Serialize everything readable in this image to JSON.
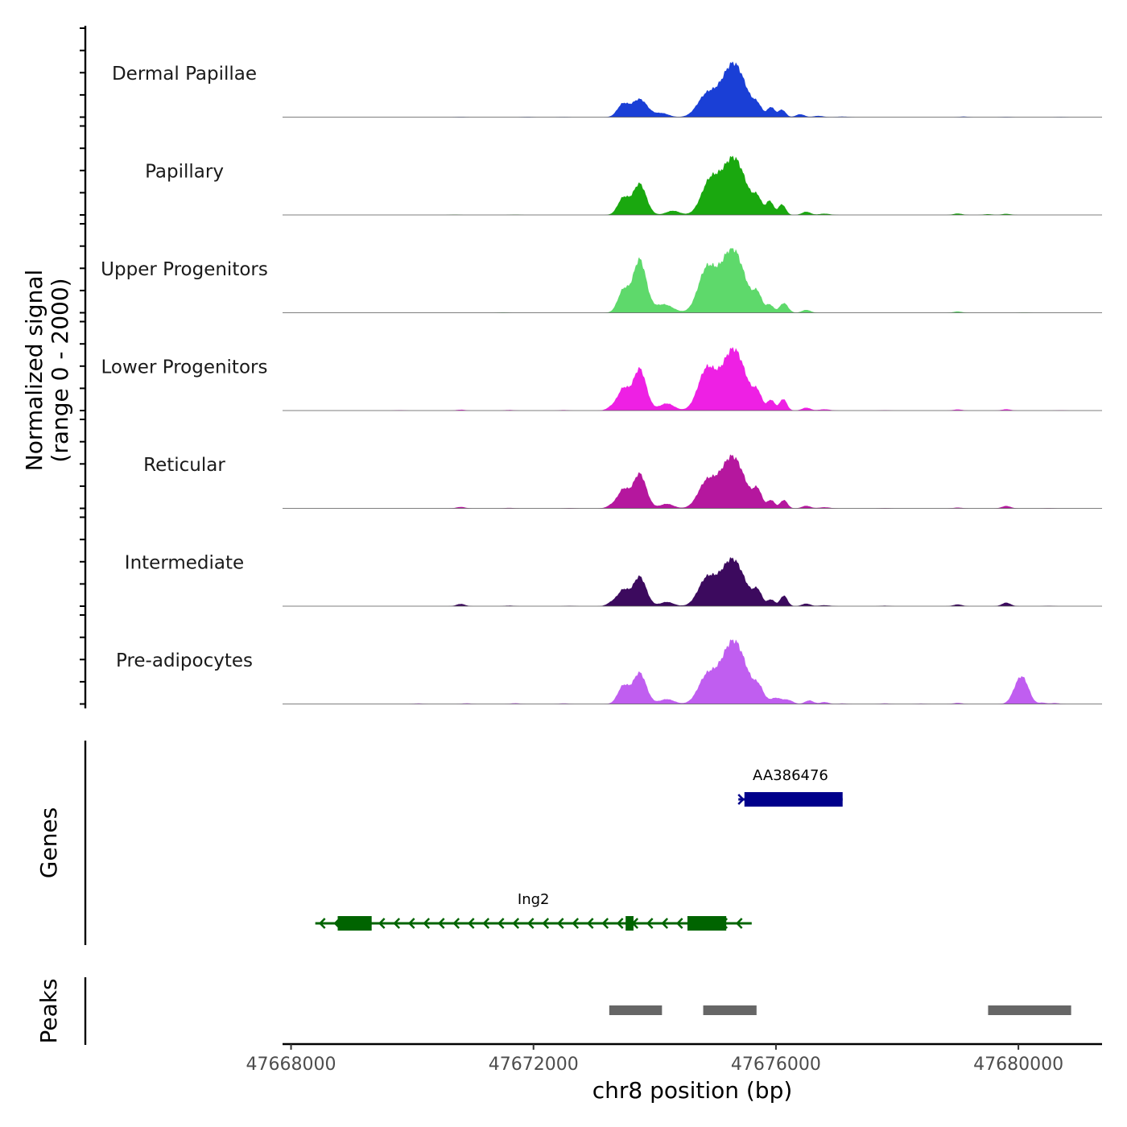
{
  "chart_data": {
    "type": "area",
    "title": "",
    "xlabel": "chr8 position (bp)",
    "ylabel_line1": "Normalized signal",
    "ylabel_line2": "(range 0 - 2000)",
    "xlim": [
      47667860,
      47681380
    ],
    "ylim": [
      0,
      2000
    ],
    "x_ticks": [
      47668000,
      47672000,
      47676000,
      47680000
    ],
    "x_tick_labels": [
      "47668000",
      "47672000",
      "47676000",
      "47680000"
    ],
    "tracks": [
      {
        "name": "Dermal Papillae",
        "color": "#1a3fd6",
        "baseline": [
          [
            47670800,
            10
          ],
          [
            47671900,
            12
          ],
          [
            47672500,
            8
          ],
          [
            47679100,
            18
          ],
          [
            47679800,
            12
          ],
          [
            47680700,
            8
          ]
        ],
        "peaks": [
          [
            47673470,
            380,
            90
          ],
          [
            47673750,
            560,
            130
          ],
          [
            47674120,
            120,
            110
          ],
          [
            47674850,
            640,
            150
          ],
          [
            47675300,
            1680,
            200
          ],
          [
            47675700,
            260,
            70
          ],
          [
            47675920,
            300,
            60
          ],
          [
            47676100,
            230,
            60
          ],
          [
            47676400,
            90,
            70
          ],
          [
            47676700,
            40,
            80
          ],
          [
            47677100,
            18,
            90
          ]
        ]
      },
      {
        "name": "Papillary",
        "color": "#1aa80f",
        "baseline": [
          [
            47670700,
            10
          ],
          [
            47671700,
            10
          ],
          [
            47679000,
            45
          ],
          [
            47679500,
            25
          ],
          [
            47679800,
            35
          ]
        ],
        "peaks": [
          [
            47673480,
            520,
            90
          ],
          [
            47673750,
            970,
            110
          ],
          [
            47674300,
            130,
            110
          ],
          [
            47674900,
            920,
            140
          ],
          [
            47675300,
            1780,
            200
          ],
          [
            47675700,
            400,
            70
          ],
          [
            47675900,
            420,
            60
          ],
          [
            47676100,
            330,
            60
          ],
          [
            47676500,
            100,
            70
          ],
          [
            47676800,
            40,
            90
          ]
        ]
      },
      {
        "name": "Upper Progenitors",
        "color": "#5ed96b",
        "baseline": [
          [
            47671500,
            12
          ],
          [
            47679000,
            40
          ],
          [
            47680100,
            10
          ]
        ],
        "peaks": [
          [
            47673480,
            680,
            90
          ],
          [
            47673750,
            1650,
            110
          ],
          [
            47674150,
            260,
            150
          ],
          [
            47674850,
            1250,
            140
          ],
          [
            47675280,
            2000,
            200
          ],
          [
            47675700,
            480,
            70
          ],
          [
            47675900,
            240,
            60
          ],
          [
            47676130,
            300,
            70
          ],
          [
            47676500,
            90,
            70
          ]
        ]
      },
      {
        "name": "Lower Progenitors",
        "color": "#ee20e4",
        "baseline": [
          [
            47669800,
            12
          ],
          [
            47670800,
            28
          ],
          [
            47671600,
            18
          ],
          [
            47672500,
            16
          ],
          [
            47677800,
            12
          ],
          [
            47679000,
            35
          ],
          [
            47679800,
            42
          ],
          [
            47680700,
            10
          ]
        ],
        "peaks": [
          [
            47673300,
            120,
            80
          ],
          [
            47673480,
            650,
            90
          ],
          [
            47673750,
            1300,
            110
          ],
          [
            47674200,
            220,
            120
          ],
          [
            47674850,
            1200,
            140
          ],
          [
            47675300,
            1920,
            200
          ],
          [
            47675700,
            420,
            70
          ],
          [
            47675920,
            320,
            60
          ],
          [
            47676120,
            360,
            60
          ],
          [
            47676500,
            90,
            70
          ],
          [
            47676800,
            40,
            90
          ]
        ]
      },
      {
        "name": "Reticular",
        "color": "#b5179e",
        "baseline": [
          [
            47670800,
            45
          ],
          [
            47671600,
            16
          ],
          [
            47672600,
            12
          ],
          [
            47677800,
            12
          ],
          [
            47679000,
            25
          ],
          [
            47679800,
            75
          ],
          [
            47680500,
            10
          ]
        ],
        "peaks": [
          [
            47673300,
            100,
            80
          ],
          [
            47673480,
            560,
            90
          ],
          [
            47673750,
            1080,
            110
          ],
          [
            47674200,
            140,
            110
          ],
          [
            47674850,
            750,
            140
          ],
          [
            47675280,
            1620,
            200
          ],
          [
            47675700,
            480,
            70
          ],
          [
            47675920,
            250,
            60
          ],
          [
            47676130,
            260,
            60
          ],
          [
            47676500,
            80,
            70
          ],
          [
            47676800,
            35,
            90
          ]
        ]
      },
      {
        "name": "Intermediate",
        "color": "#3c0a5e",
        "baseline": [
          [
            47670800,
            70
          ],
          [
            47671600,
            18
          ],
          [
            47672600,
            12
          ],
          [
            47677800,
            15
          ],
          [
            47679000,
            55
          ],
          [
            47679800,
            110
          ],
          [
            47680500,
            12
          ]
        ],
        "peaks": [
          [
            47673300,
            120,
            80
          ],
          [
            47673480,
            480,
            90
          ],
          [
            47673750,
            920,
            110
          ],
          [
            47674200,
            130,
            110
          ],
          [
            47674850,
            780,
            140
          ],
          [
            47675280,
            1470,
            200
          ],
          [
            47675700,
            400,
            70
          ],
          [
            47675920,
            200,
            60
          ],
          [
            47676130,
            330,
            60
          ],
          [
            47676500,
            80,
            70
          ],
          [
            47676800,
            30,
            90
          ]
        ]
      },
      {
        "name": "Pre-adipocytes",
        "color": "#c05ef0",
        "baseline": [
          [
            47670100,
            18
          ],
          [
            47670900,
            22
          ],
          [
            47671700,
            25
          ],
          [
            47672500,
            20
          ],
          [
            47677100,
            18
          ],
          [
            47677800,
            20
          ],
          [
            47678400,
            15
          ],
          [
            47679000,
            35
          ],
          [
            47680000,
            90
          ],
          [
            47680600,
            30
          ]
        ],
        "peaks": [
          [
            47673480,
            550,
            90
          ],
          [
            47673750,
            970,
            110
          ],
          [
            47674200,
            150,
            120
          ],
          [
            47674850,
            760,
            140
          ],
          [
            47675300,
            1980,
            210
          ],
          [
            47675720,
            380,
            80
          ],
          [
            47676000,
            180,
            90
          ],
          [
            47676200,
            120,
            80
          ],
          [
            47676550,
            110,
            70
          ],
          [
            47676800,
            60,
            70
          ],
          [
            47679970,
            380,
            90
          ],
          [
            47680100,
            620,
            90
          ],
          [
            47680400,
            40,
            60
          ]
        ]
      }
    ],
    "genes_label": "Genes",
    "genes": [
      {
        "name": "AA386476",
        "color": "#00008b",
        "strand": "+",
        "start": 47675380,
        "end": 47677100,
        "exons": [
          [
            47675480,
            47677100
          ]
        ]
      },
      {
        "name": "Ing2",
        "color": "#006400",
        "strand": "-",
        "start": 47668400,
        "end": 47675600,
        "exons": [
          [
            47668770,
            47669330
          ],
          [
            47673520,
            47673650
          ],
          [
            47674540,
            47675180
          ]
        ]
      }
    ],
    "peaks_label": "Peaks",
    "peak_regions": [
      [
        47673250,
        47674120
      ],
      [
        47674800,
        47675680
      ],
      [
        47679500,
        47680870
      ]
    ]
  }
}
